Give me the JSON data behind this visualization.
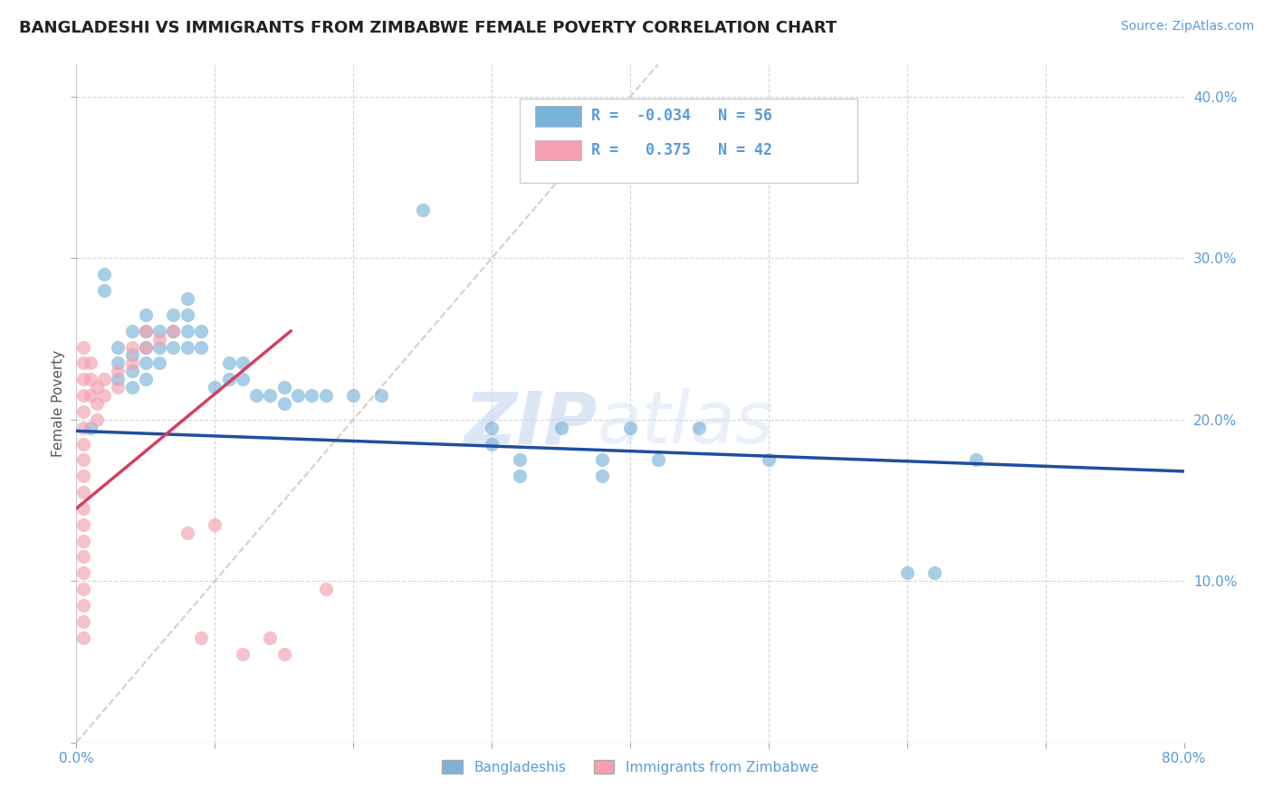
{
  "title": "BANGLADESHI VS IMMIGRANTS FROM ZIMBABWE FEMALE POVERTY CORRELATION CHART",
  "source": "Source: ZipAtlas.com",
  "ylabel": "Female Poverty",
  "xlim": [
    0,
    0.8
  ],
  "ylim": [
    0,
    0.42
  ],
  "blue_color": "#7ab3d9",
  "pink_color": "#f4a0b0",
  "blue_line_color": "#1f4e9e",
  "pink_line_color": "#d44060",
  "diagonal_color": "#c8b8b8",
  "watermark_color": "#c5d8ef",
  "axis_color": "#5b9bd5",
  "grid_color": "#cccccc",
  "legend_labels": [
    "Bangladeshis",
    "Immigrants from Zimbabwe"
  ],
  "blue_R": -0.034,
  "blue_N": 56,
  "pink_R": 0.375,
  "pink_N": 42,
  "blue_scatter": [
    [
      0.01,
      0.195
    ],
    [
      0.02,
      0.29
    ],
    [
      0.02,
      0.28
    ],
    [
      0.03,
      0.245
    ],
    [
      0.03,
      0.235
    ],
    [
      0.03,
      0.225
    ],
    [
      0.04,
      0.255
    ],
    [
      0.04,
      0.24
    ],
    [
      0.04,
      0.23
    ],
    [
      0.04,
      0.22
    ],
    [
      0.05,
      0.265
    ],
    [
      0.05,
      0.255
    ],
    [
      0.05,
      0.245
    ],
    [
      0.05,
      0.235
    ],
    [
      0.05,
      0.225
    ],
    [
      0.06,
      0.255
    ],
    [
      0.06,
      0.245
    ],
    [
      0.06,
      0.235
    ],
    [
      0.07,
      0.265
    ],
    [
      0.07,
      0.255
    ],
    [
      0.07,
      0.245
    ],
    [
      0.08,
      0.275
    ],
    [
      0.08,
      0.265
    ],
    [
      0.08,
      0.255
    ],
    [
      0.08,
      0.245
    ],
    [
      0.09,
      0.255
    ],
    [
      0.09,
      0.245
    ],
    [
      0.1,
      0.22
    ],
    [
      0.11,
      0.235
    ],
    [
      0.11,
      0.225
    ],
    [
      0.12,
      0.235
    ],
    [
      0.12,
      0.225
    ],
    [
      0.13,
      0.215
    ],
    [
      0.14,
      0.215
    ],
    [
      0.15,
      0.22
    ],
    [
      0.15,
      0.21
    ],
    [
      0.16,
      0.215
    ],
    [
      0.17,
      0.215
    ],
    [
      0.18,
      0.215
    ],
    [
      0.2,
      0.215
    ],
    [
      0.22,
      0.215
    ],
    [
      0.25,
      0.33
    ],
    [
      0.3,
      0.195
    ],
    [
      0.3,
      0.185
    ],
    [
      0.32,
      0.175
    ],
    [
      0.32,
      0.165
    ],
    [
      0.35,
      0.195
    ],
    [
      0.38,
      0.175
    ],
    [
      0.38,
      0.165
    ],
    [
      0.4,
      0.195
    ],
    [
      0.42,
      0.175
    ],
    [
      0.45,
      0.195
    ],
    [
      0.5,
      0.175
    ],
    [
      0.6,
      0.105
    ],
    [
      0.62,
      0.105
    ],
    [
      0.65,
      0.175
    ]
  ],
  "pink_scatter": [
    [
      0.005,
      0.245
    ],
    [
      0.005,
      0.235
    ],
    [
      0.005,
      0.225
    ],
    [
      0.005,
      0.215
    ],
    [
      0.005,
      0.205
    ],
    [
      0.005,
      0.195
    ],
    [
      0.005,
      0.185
    ],
    [
      0.005,
      0.175
    ],
    [
      0.005,
      0.165
    ],
    [
      0.005,
      0.155
    ],
    [
      0.005,
      0.145
    ],
    [
      0.005,
      0.135
    ],
    [
      0.005,
      0.125
    ],
    [
      0.005,
      0.115
    ],
    [
      0.005,
      0.105
    ],
    [
      0.005,
      0.095
    ],
    [
      0.005,
      0.085
    ],
    [
      0.005,
      0.075
    ],
    [
      0.005,
      0.065
    ],
    [
      0.01,
      0.235
    ],
    [
      0.01,
      0.225
    ],
    [
      0.01,
      0.215
    ],
    [
      0.015,
      0.22
    ],
    [
      0.015,
      0.21
    ],
    [
      0.015,
      0.2
    ],
    [
      0.02,
      0.225
    ],
    [
      0.02,
      0.215
    ],
    [
      0.03,
      0.23
    ],
    [
      0.03,
      0.22
    ],
    [
      0.04,
      0.245
    ],
    [
      0.04,
      0.235
    ],
    [
      0.05,
      0.255
    ],
    [
      0.05,
      0.245
    ],
    [
      0.06,
      0.25
    ],
    [
      0.07,
      0.255
    ],
    [
      0.08,
      0.13
    ],
    [
      0.09,
      0.065
    ],
    [
      0.1,
      0.135
    ],
    [
      0.12,
      0.055
    ],
    [
      0.14,
      0.065
    ],
    [
      0.15,
      0.055
    ],
    [
      0.18,
      0.095
    ]
  ],
  "blue_line": [
    0.0,
    0.193,
    0.8,
    0.168
  ],
  "pink_line": [
    0.0,
    0.145,
    0.155,
    0.255
  ],
  "diagonal_line": [
    0.0,
    0.0,
    0.42,
    0.42
  ]
}
